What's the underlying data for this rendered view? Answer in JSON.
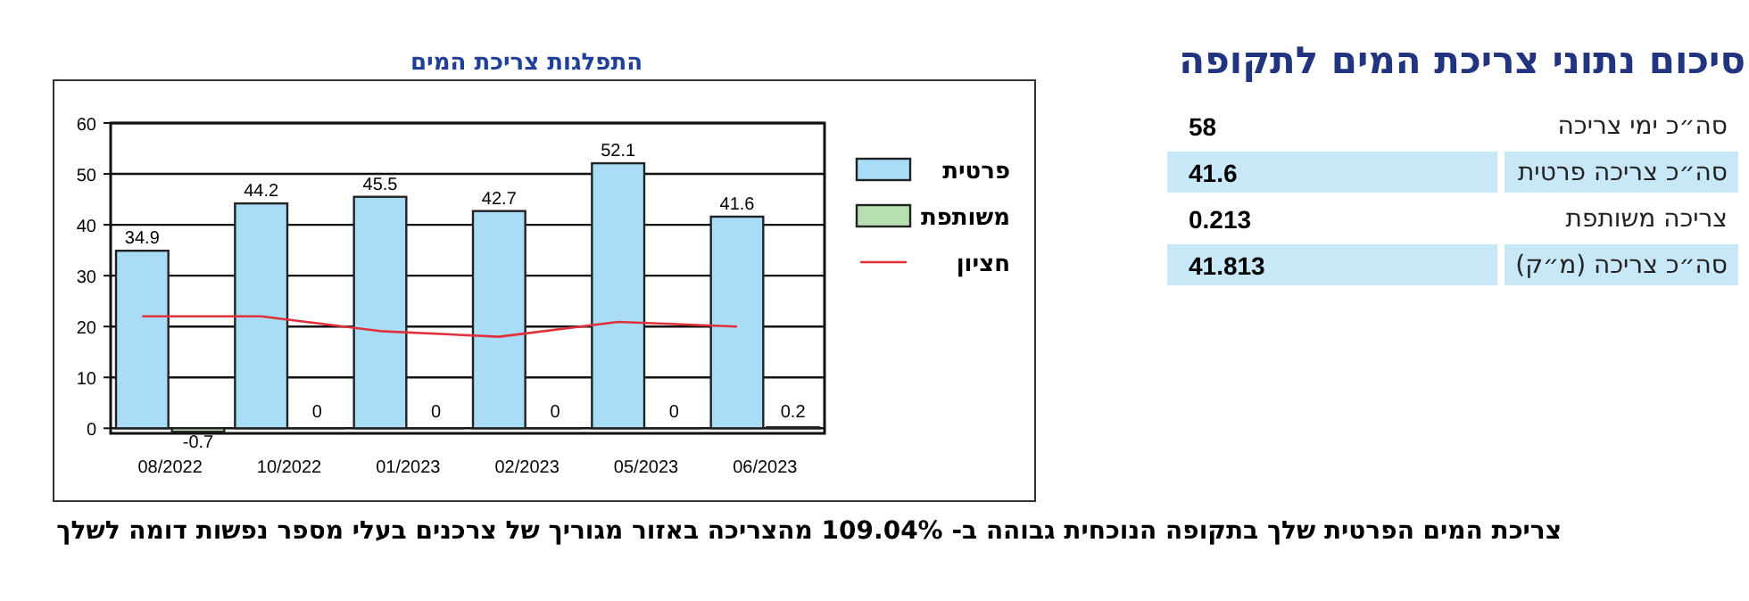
{
  "chart_data": [
    {
      "type": "other",
      "title": "סיכום נתוני צריכת המים לתקופה",
      "categories": [
        "סה״כ ימי צריכה",
        "סה״כ צריכה פרטית",
        "צריכה משותפת",
        "סה״כ צריכה (מ״ק)"
      ],
      "values": [
        58,
        41.6,
        0.213,
        41.813
      ],
      "data_labels": true
    },
    {
      "type": "bar",
      "title": "התפלגות צריכת המים",
      "categories": [
        "08/2022",
        "10/2022",
        "01/2023",
        "02/2023",
        "05/2023",
        "06/2023"
      ],
      "series": [
        {
          "name": "פרטית",
          "color": "#a8dcf7",
          "values": [
            34.9,
            44.2,
            45.5,
            42.7,
            52.1,
            41.6
          ],
          "value_labels": [
            "34.9",
            "44.2",
            "45.5",
            "42.7",
            "52.1",
            "41.6"
          ]
        },
        {
          "name": "משותפת",
          "color": "#b7dfb2",
          "values": [
            -0.7,
            0,
            0,
            0,
            0,
            0.2
          ],
          "value_labels": [
            "-0.7",
            "0",
            "0",
            "0",
            "0",
            "0.2"
          ]
        },
        {
          "name": "חציון",
          "type": "line",
          "color": "#e0303a",
          "values": [
            22,
            22,
            19.1,
            18,
            20.9,
            20
          ]
        }
      ],
      "ylim": [
        -1,
        60
      ],
      "yticks": [
        0,
        10,
        20,
        30,
        40,
        50,
        60
      ],
      "grid": "y",
      "legend": "right",
      "annotations": [
        "צריכת המים הפרטית שלך בתקופה הנוכחית גבוהה ב- 109.04% מהצריכה באזור מגוריך של צרכנים בעלי מספר נפשות דומה לשלך"
      ]
    }
  ]
}
